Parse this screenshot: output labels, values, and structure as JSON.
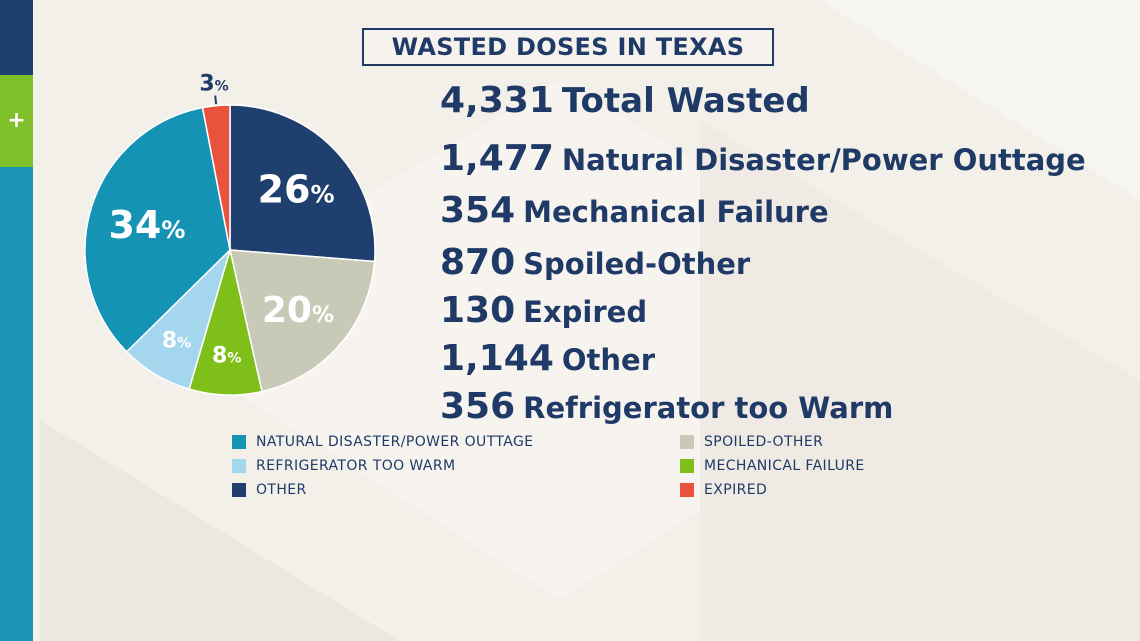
{
  "title": "WASTED DOSES IN TEXAS",
  "sidebar": {
    "icon": "plus-icon",
    "glyph": "+"
  },
  "stats": {
    "total": {
      "value": "4,331",
      "label": "Total Wasted"
    },
    "items": [
      {
        "value": "1,477",
        "label": "Natural Disaster/Power Outtage"
      },
      {
        "value": "354",
        "label": "Mechanical Failure"
      },
      {
        "value": "870",
        "label": "Spoiled-Other"
      },
      {
        "value": "130",
        "label": "Expired"
      },
      {
        "value": "1,144",
        "label": "Other"
      },
      {
        "value": "356",
        "label": "Refrigerator too Warm"
      }
    ]
  },
  "chart_data": {
    "type": "pie",
    "title": "WASTED DOSES IN TEXAS",
    "slices": [
      {
        "name": "OTHER",
        "value": 26,
        "label": "26",
        "color": "#1f3f6f"
      },
      {
        "name": "SPOILED-OTHER",
        "value": 20,
        "label": "20",
        "color": "#c9c9b7"
      },
      {
        "name": "MECHANICAL FAILURE",
        "value": 8,
        "label": "8",
        "color": "#7fbf19"
      },
      {
        "name": "REFRIGERATOR TOO WARM",
        "value": 8,
        "label": "8",
        "color": "#a4d6ee"
      },
      {
        "name": "NATURAL DISASTER/POWER OUTTAGE",
        "value": 34,
        "label": "34",
        "color": "#1593b5"
      },
      {
        "name": "EXPIRED",
        "value": 3,
        "label": "3",
        "color": "#e9533d"
      }
    ],
    "percent_sign": "%",
    "legend": [
      {
        "label": "NATURAL DISASTER/POWER OUTTAGE",
        "color": "#1593b5"
      },
      {
        "label": "REFRIGERATOR TOO WARM",
        "color": "#a4d6ee"
      },
      {
        "label": "OTHER",
        "color": "#1f3f6f"
      },
      {
        "label": "SPOILED-OTHER",
        "color": "#c9c9b7"
      },
      {
        "label": "MECHANICAL FAILURE",
        "color": "#7fbf19"
      },
      {
        "label": "EXPIRED",
        "color": "#e9533d"
      }
    ],
    "legend_placement": "bottom"
  }
}
